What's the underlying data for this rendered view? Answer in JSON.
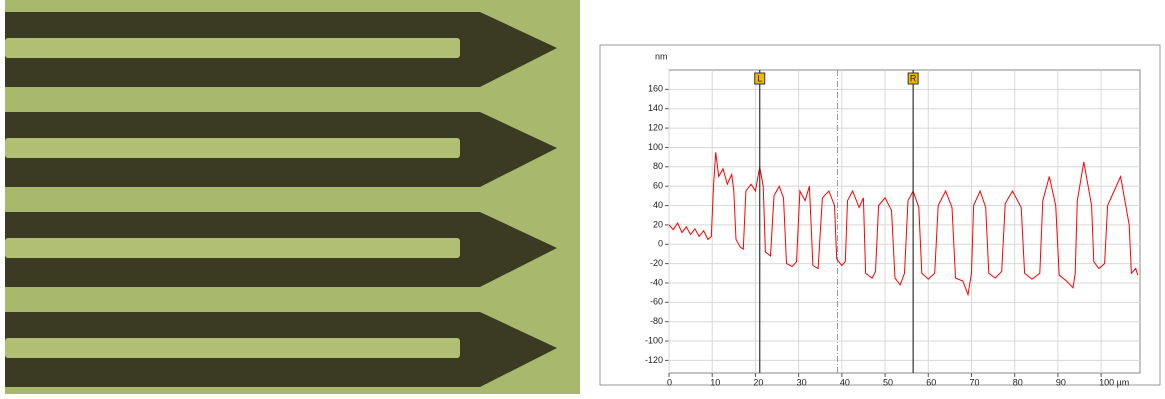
{
  "chart_data": {
    "type": "line",
    "y_unit": "nm",
    "x": [
      0,
      1,
      2,
      3,
      4,
      5,
      6,
      7,
      8,
      9,
      9.8,
      10.3,
      10.8,
      11.5,
      12.5,
      13.5,
      14.5,
      15,
      15.5,
      16.5,
      17.2,
      17.8,
      19,
      20,
      21,
      21.8,
      22.3,
      23.5,
      24.3,
      25.5,
      26.5,
      27.2,
      28.5,
      29.5,
      30.3,
      31.5,
      32.5,
      33.3,
      34.5,
      35.5,
      37,
      38.3,
      38.8,
      40,
      40.8,
      41.3,
      42.5,
      44,
      45,
      45.5,
      47,
      47.8,
      48.5,
      50,
      51.5,
      52.3,
      53.5,
      54.5,
      55.3,
      56.5,
      57.8,
      58.5,
      60,
      61.5,
      62.3,
      64,
      65.5,
      66.3,
      68,
      69.2,
      70,
      70.5,
      72,
      73.3,
      74,
      75.5,
      77,
      77.8,
      79.5,
      81.5,
      82.3,
      84,
      85.8,
      86.5,
      88,
      89.5,
      90.3,
      92,
      93.5,
      94,
      94.5,
      96,
      97.8,
      98.3,
      99.5,
      100.8,
      101.5,
      103,
      104.5,
      105.5,
      106.5,
      107,
      108,
      108.5
    ],
    "series": [
      {
        "color": "#ff0000",
        "values": [
          20,
          15,
          22,
          12,
          18,
          10,
          16,
          8,
          14,
          5,
          8,
          60,
          95,
          70,
          78,
          62,
          72,
          55,
          5,
          -3,
          -5,
          55,
          62,
          55,
          80,
          60,
          -8,
          -12,
          50,
          60,
          48,
          -20,
          -23,
          -18,
          55,
          45,
          60,
          -22,
          -25,
          48,
          55,
          40,
          -15,
          -22,
          -18,
          45,
          55,
          38,
          48,
          -30,
          -35,
          -28,
          40,
          48,
          35,
          -35,
          -42,
          -30,
          45,
          55,
          38,
          -30,
          -36,
          -30,
          40,
          55,
          38,
          -35,
          -38,
          -52,
          -30,
          40,
          55,
          38,
          -30,
          -35,
          -28,
          42,
          55,
          38,
          -30,
          -36,
          -30,
          45,
          70,
          40,
          -32,
          -38,
          -45,
          -30,
          45,
          85,
          40,
          -18,
          -25,
          -20,
          40,
          55,
          70,
          45,
          20,
          -30,
          -25,
          -32
        ]
      }
    ],
    "xlim": [
      0,
      109
    ],
    "ylim": [
      -133,
      180
    ],
    "xticks": [
      0,
      10,
      20,
      30,
      40,
      50,
      60,
      70,
      80,
      90,
      {
        "value": 100,
        "label": "100 µm"
      }
    ],
    "yticks": [
      -120,
      -100,
      -80,
      -60,
      -40,
      -20,
      0,
      20,
      40,
      60,
      80,
      100,
      120,
      140,
      160
    ],
    "grid": true,
    "cursors": [
      {
        "label": "L",
        "x": 21,
        "color": "#f5b800"
      },
      {
        "label": "R",
        "x": 56.5,
        "color": "#f5b800"
      }
    ],
    "reference_x": 39
  }
}
